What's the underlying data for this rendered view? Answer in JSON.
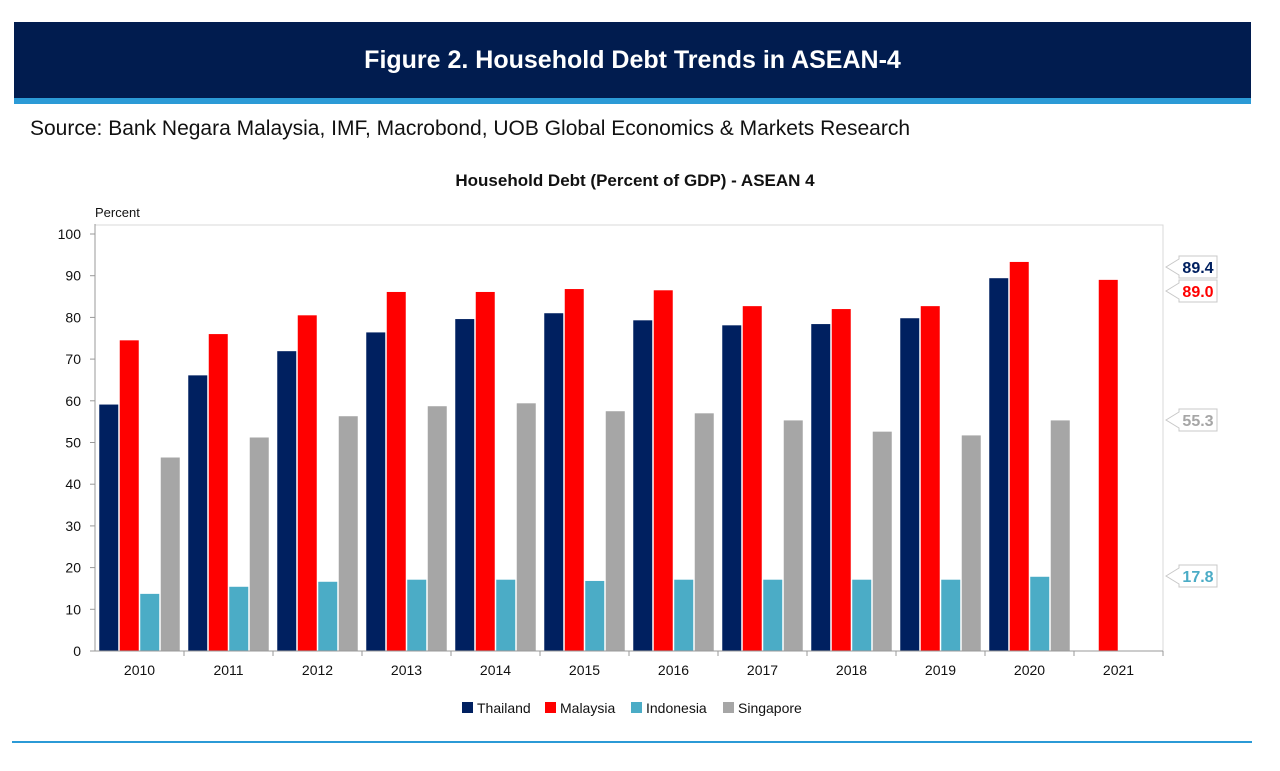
{
  "header": {
    "title": "Figure 2. Household Debt Trends in ASEAN-4",
    "source": "Source: Bank Negara Malaysia, IMF, Macrobond, UOB Global Economics & Markets Research"
  },
  "chart_data": {
    "type": "bar",
    "title": "Household Debt (Percent of GDP) - ASEAN 4",
    "ylabel": "Percent",
    "ylim": [
      0,
      100
    ],
    "yticks": [
      "0",
      "10",
      "20",
      "30",
      "40",
      "50",
      "60",
      "70",
      "80",
      "90",
      "100"
    ],
    "categories": [
      "2010",
      "2011",
      "2012",
      "2013",
      "2014",
      "2015",
      "2016",
      "2017",
      "2018",
      "2019",
      "2020",
      "2021"
    ],
    "legend_position": "bottom",
    "grid": false,
    "series": [
      {
        "name": "Thailand",
        "color": "#002060",
        "values": [
          59.1,
          66.1,
          71.9,
          76.4,
          79.6,
          81.0,
          79.3,
          78.1,
          78.4,
          79.8,
          89.4,
          null
        ],
        "end_label": "89.4"
      },
      {
        "name": "Malaysia",
        "color": "#ff0000",
        "values": [
          74.5,
          76.0,
          80.5,
          86.1,
          86.1,
          86.8,
          86.5,
          82.7,
          82.0,
          82.7,
          93.3,
          89.0
        ],
        "end_label": "89.0"
      },
      {
        "name": "Indonesia",
        "color": "#4bacc6",
        "values": [
          13.7,
          15.4,
          16.6,
          17.1,
          17.1,
          16.8,
          17.1,
          17.1,
          17.1,
          17.1,
          17.8,
          null
        ],
        "end_label": "17.8"
      },
      {
        "name": "Singapore",
        "color": "#a6a6a6",
        "values": [
          46.4,
          51.2,
          56.3,
          58.7,
          59.4,
          57.5,
          57.0,
          55.3,
          52.6,
          51.7,
          55.3,
          null
        ],
        "end_label": "55.3"
      }
    ]
  }
}
